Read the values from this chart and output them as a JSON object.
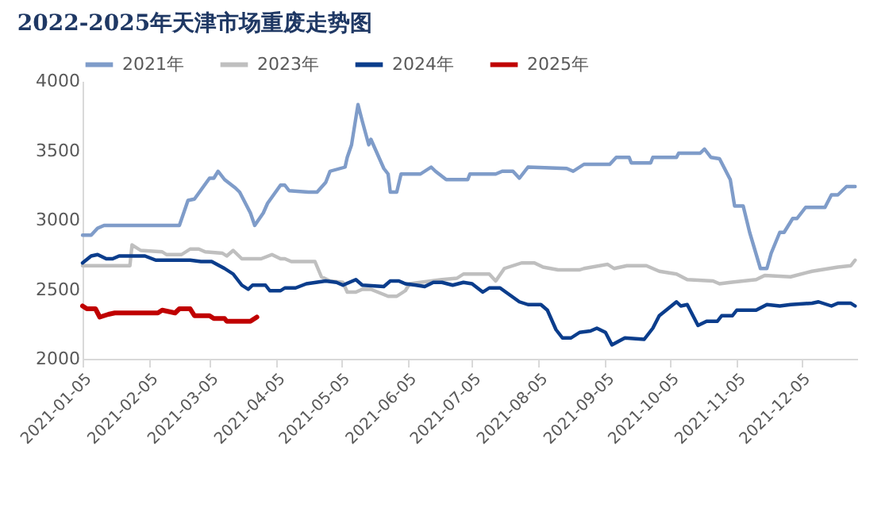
{
  "chart_data": {
    "type": "line",
    "title": "2022-2025年天津市场重废走势图",
    "xlim": [
      "2021-01-05",
      "2021-12-31"
    ],
    "xticks": [
      "2021-01-05",
      "2021-02-05",
      "2021-03-05",
      "2021-04-05",
      "2021-05-05",
      "2021-06-05",
      "2021-07-05",
      "2021-08-05",
      "2021-09-05",
      "2021-10-05",
      "2021-11-05",
      "2021-12-05"
    ],
    "ylim": [
      2000,
      4000
    ],
    "yticks": [
      2000,
      2500,
      3000,
      3500,
      4000
    ],
    "grid": false,
    "legend": "top",
    "marker": "none",
    "line_style": "solid",
    "series": [
      {
        "name": "2021年",
        "color": "#7f9cc9",
        "x": [
          "2021-01-05",
          "2021-01-09",
          "2021-01-12",
          "2021-01-15",
          "2021-02-19",
          "2021-02-23",
          "2021-02-26",
          "2021-03-05",
          "2021-03-07",
          "2021-03-09",
          "2021-03-12",
          "2021-03-17",
          "2021-03-19",
          "2021-03-24",
          "2021-03-26",
          "2021-03-30",
          "2021-04-01",
          "2021-04-07",
          "2021-04-09",
          "2021-04-11",
          "2021-04-20",
          "2021-04-24",
          "2021-04-28",
          "2021-04-30",
          "2021-05-07",
          "2021-05-08",
          "2021-05-10",
          "2021-05-13",
          "2021-05-15",
          "2021-05-18",
          "2021-05-19",
          "2021-05-25",
          "2021-05-27",
          "2021-05-28",
          "2021-05-31",
          "2021-06-02",
          "2021-06-11",
          "2021-06-16",
          "2021-06-18",
          "2021-06-23",
          "2021-07-03",
          "2021-07-04",
          "2021-07-16",
          "2021-07-19",
          "2021-07-24",
          "2021-07-27",
          "2021-07-31",
          "2021-08-18",
          "2021-08-21",
          "2021-08-26",
          "2021-09-07",
          "2021-09-10",
          "2021-09-16",
          "2021-09-17",
          "2021-09-26",
          "2021-09-27",
          "2021-10-08",
          "2021-10-09",
          "2021-10-19",
          "2021-10-21",
          "2021-10-24",
          "2021-10-28",
          "2021-11-02",
          "2021-11-04",
          "2021-11-08",
          "2021-11-11",
          "2021-11-16",
          "2021-11-19",
          "2021-11-21",
          "2021-11-25",
          "2021-11-27",
          "2021-12-01",
          "2021-12-03",
          "2021-12-07",
          "2021-12-16",
          "2021-12-19",
          "2021-12-22",
          "2021-12-26",
          "2021-12-30"
        ],
        "values": [
          2890,
          2890,
          2940,
          2960,
          2960,
          3140,
          3150,
          3300,
          3300,
          3350,
          3290,
          3230,
          3200,
          3050,
          2960,
          3050,
          3120,
          3250,
          3250,
          3210,
          3200,
          3200,
          3270,
          3350,
          3380,
          3450,
          3540,
          3830,
          3710,
          3540,
          3580,
          3370,
          3330,
          3200,
          3200,
          3330,
          3330,
          3380,
          3350,
          3290,
          3290,
          3330,
          3330,
          3350,
          3350,
          3300,
          3380,
          3370,
          3350,
          3400,
          3400,
          3450,
          3450,
          3410,
          3410,
          3450,
          3450,
          3480,
          3480,
          3510,
          3450,
          3440,
          3290,
          3100,
          3100,
          2910,
          2650,
          2650,
          2760,
          2910,
          2910,
          3010,
          3010,
          3090,
          3090,
          3180,
          3180,
          3240,
          3240
        ]
      },
      {
        "name": "2023年",
        "color": "#bfbfbf",
        "x": [
          "2021-01-05",
          "2021-01-27",
          "2021-01-28",
          "2021-02-01",
          "2021-02-11",
          "2021-02-13",
          "2021-02-20",
          "2021-02-24",
          "2021-02-28",
          "2021-03-03",
          "2021-03-11",
          "2021-03-13",
          "2021-03-16",
          "2021-03-20",
          "2021-03-29",
          "2021-04-03",
          "2021-04-07",
          "2021-04-09",
          "2021-04-12",
          "2021-04-23",
          "2021-04-26",
          "2021-04-30",
          "2021-05-06",
          "2021-05-08",
          "2021-05-12",
          "2021-05-15",
          "2021-05-19",
          "2021-05-27",
          "2021-05-31",
          "2021-06-04",
          "2021-06-06",
          "2021-06-11",
          "2021-06-21",
          "2021-06-28",
          "2021-07-01",
          "2021-07-13",
          "2021-07-16",
          "2021-07-20",
          "2021-07-28",
          "2021-08-03",
          "2021-08-07",
          "2021-08-14",
          "2021-08-24",
          "2021-08-26",
          "2021-09-06",
          "2021-09-09",
          "2021-09-15",
          "2021-09-24",
          "2021-09-30",
          "2021-10-08",
          "2021-10-13",
          "2021-10-25",
          "2021-10-28",
          "2021-11-02",
          "2021-11-14",
          "2021-11-18",
          "2021-11-30",
          "2021-12-10",
          "2021-12-22",
          "2021-12-28",
          "2021-12-30"
        ],
        "values": [
          2670,
          2670,
          2820,
          2780,
          2770,
          2750,
          2750,
          2790,
          2790,
          2770,
          2760,
          2740,
          2780,
          2720,
          2720,
          2750,
          2720,
          2720,
          2700,
          2700,
          2590,
          2560,
          2550,
          2480,
          2480,
          2500,
          2500,
          2450,
          2450,
          2490,
          2540,
          2550,
          2570,
          2580,
          2610,
          2610,
          2560,
          2650,
          2690,
          2690,
          2660,
          2640,
          2640,
          2650,
          2680,
          2650,
          2670,
          2670,
          2630,
          2610,
          2570,
          2560,
          2540,
          2550,
          2570,
          2600,
          2590,
          2630,
          2660,
          2670,
          2710
        ]
      },
      {
        "name": "2024年",
        "color": "#0b3d8c",
        "x": [
          "2021-01-05",
          "2021-01-09",
          "2021-01-12",
          "2021-01-16",
          "2021-01-19",
          "2021-01-22",
          "2021-02-03",
          "2021-02-08",
          "2021-02-24",
          "2021-03-01",
          "2021-03-06",
          "2021-03-12",
          "2021-03-16",
          "2021-03-20",
          "2021-03-23",
          "2021-03-25",
          "2021-03-31",
          "2021-04-02",
          "2021-04-07",
          "2021-04-09",
          "2021-04-14",
          "2021-04-19",
          "2021-04-28",
          "2021-05-03",
          "2021-05-06",
          "2021-05-12",
          "2021-05-15",
          "2021-05-25",
          "2021-05-28",
          "2021-06-01",
          "2021-06-04",
          "2021-06-09",
          "2021-06-13",
          "2021-06-17",
          "2021-06-21",
          "2021-06-26",
          "2021-07-01",
          "2021-07-05",
          "2021-07-10",
          "2021-07-13",
          "2021-07-18",
          "2021-07-27",
          "2021-07-31",
          "2021-08-06",
          "2021-08-09",
          "2021-08-13",
          "2021-08-16",
          "2021-08-20",
          "2021-08-24",
          "2021-08-29",
          "2021-09-01",
          "2021-09-05",
          "2021-09-08",
          "2021-09-14",
          "2021-09-23",
          "2021-09-27",
          "2021-09-30",
          "2021-10-08",
          "2021-10-10",
          "2021-10-13",
          "2021-10-18",
          "2021-10-22",
          "2021-10-27",
          "2021-10-29",
          "2021-11-03",
          "2021-11-05",
          "2021-11-14",
          "2021-11-19",
          "2021-11-25",
          "2021-11-30",
          "2021-12-10",
          "2021-12-13",
          "2021-12-19",
          "2021-12-22",
          "2021-12-28",
          "2021-12-30"
        ],
        "values": [
          2690,
          2740,
          2750,
          2720,
          2720,
          2740,
          2740,
          2710,
          2710,
          2700,
          2700,
          2650,
          2610,
          2530,
          2500,
          2530,
          2530,
          2490,
          2490,
          2510,
          2510,
          2540,
          2560,
          2550,
          2530,
          2570,
          2530,
          2520,
          2560,
          2560,
          2540,
          2530,
          2520,
          2550,
          2550,
          2530,
          2550,
          2540,
          2480,
          2510,
          2510,
          2410,
          2390,
          2390,
          2350,
          2210,
          2150,
          2150,
          2190,
          2200,
          2220,
          2190,
          2100,
          2150,
          2140,
          2220,
          2310,
          2410,
          2380,
          2390,
          2240,
          2270,
          2270,
          2310,
          2310,
          2350,
          2350,
          2390,
          2380,
          2390,
          2400,
          2410,
          2380,
          2400,
          2400,
          2380
        ]
      },
      {
        "name": "2025年",
        "color": "#c00000",
        "x": [
          "2021-01-05",
          "2021-01-07",
          "2021-01-11",
          "2021-01-13",
          "2021-01-17",
          "2021-01-20",
          "2021-02-09",
          "2021-02-11",
          "2021-02-17",
          "2021-02-19",
          "2021-02-24",
          "2021-02-26",
          "2021-03-05",
          "2021-03-07",
          "2021-03-12",
          "2021-03-13",
          "2021-03-24",
          "2021-03-27"
        ],
        "values": [
          2380,
          2360,
          2360,
          2300,
          2320,
          2330,
          2330,
          2350,
          2330,
          2360,
          2360,
          2310,
          2310,
          2290,
          2290,
          2270,
          2270,
          2300
        ]
      }
    ]
  }
}
